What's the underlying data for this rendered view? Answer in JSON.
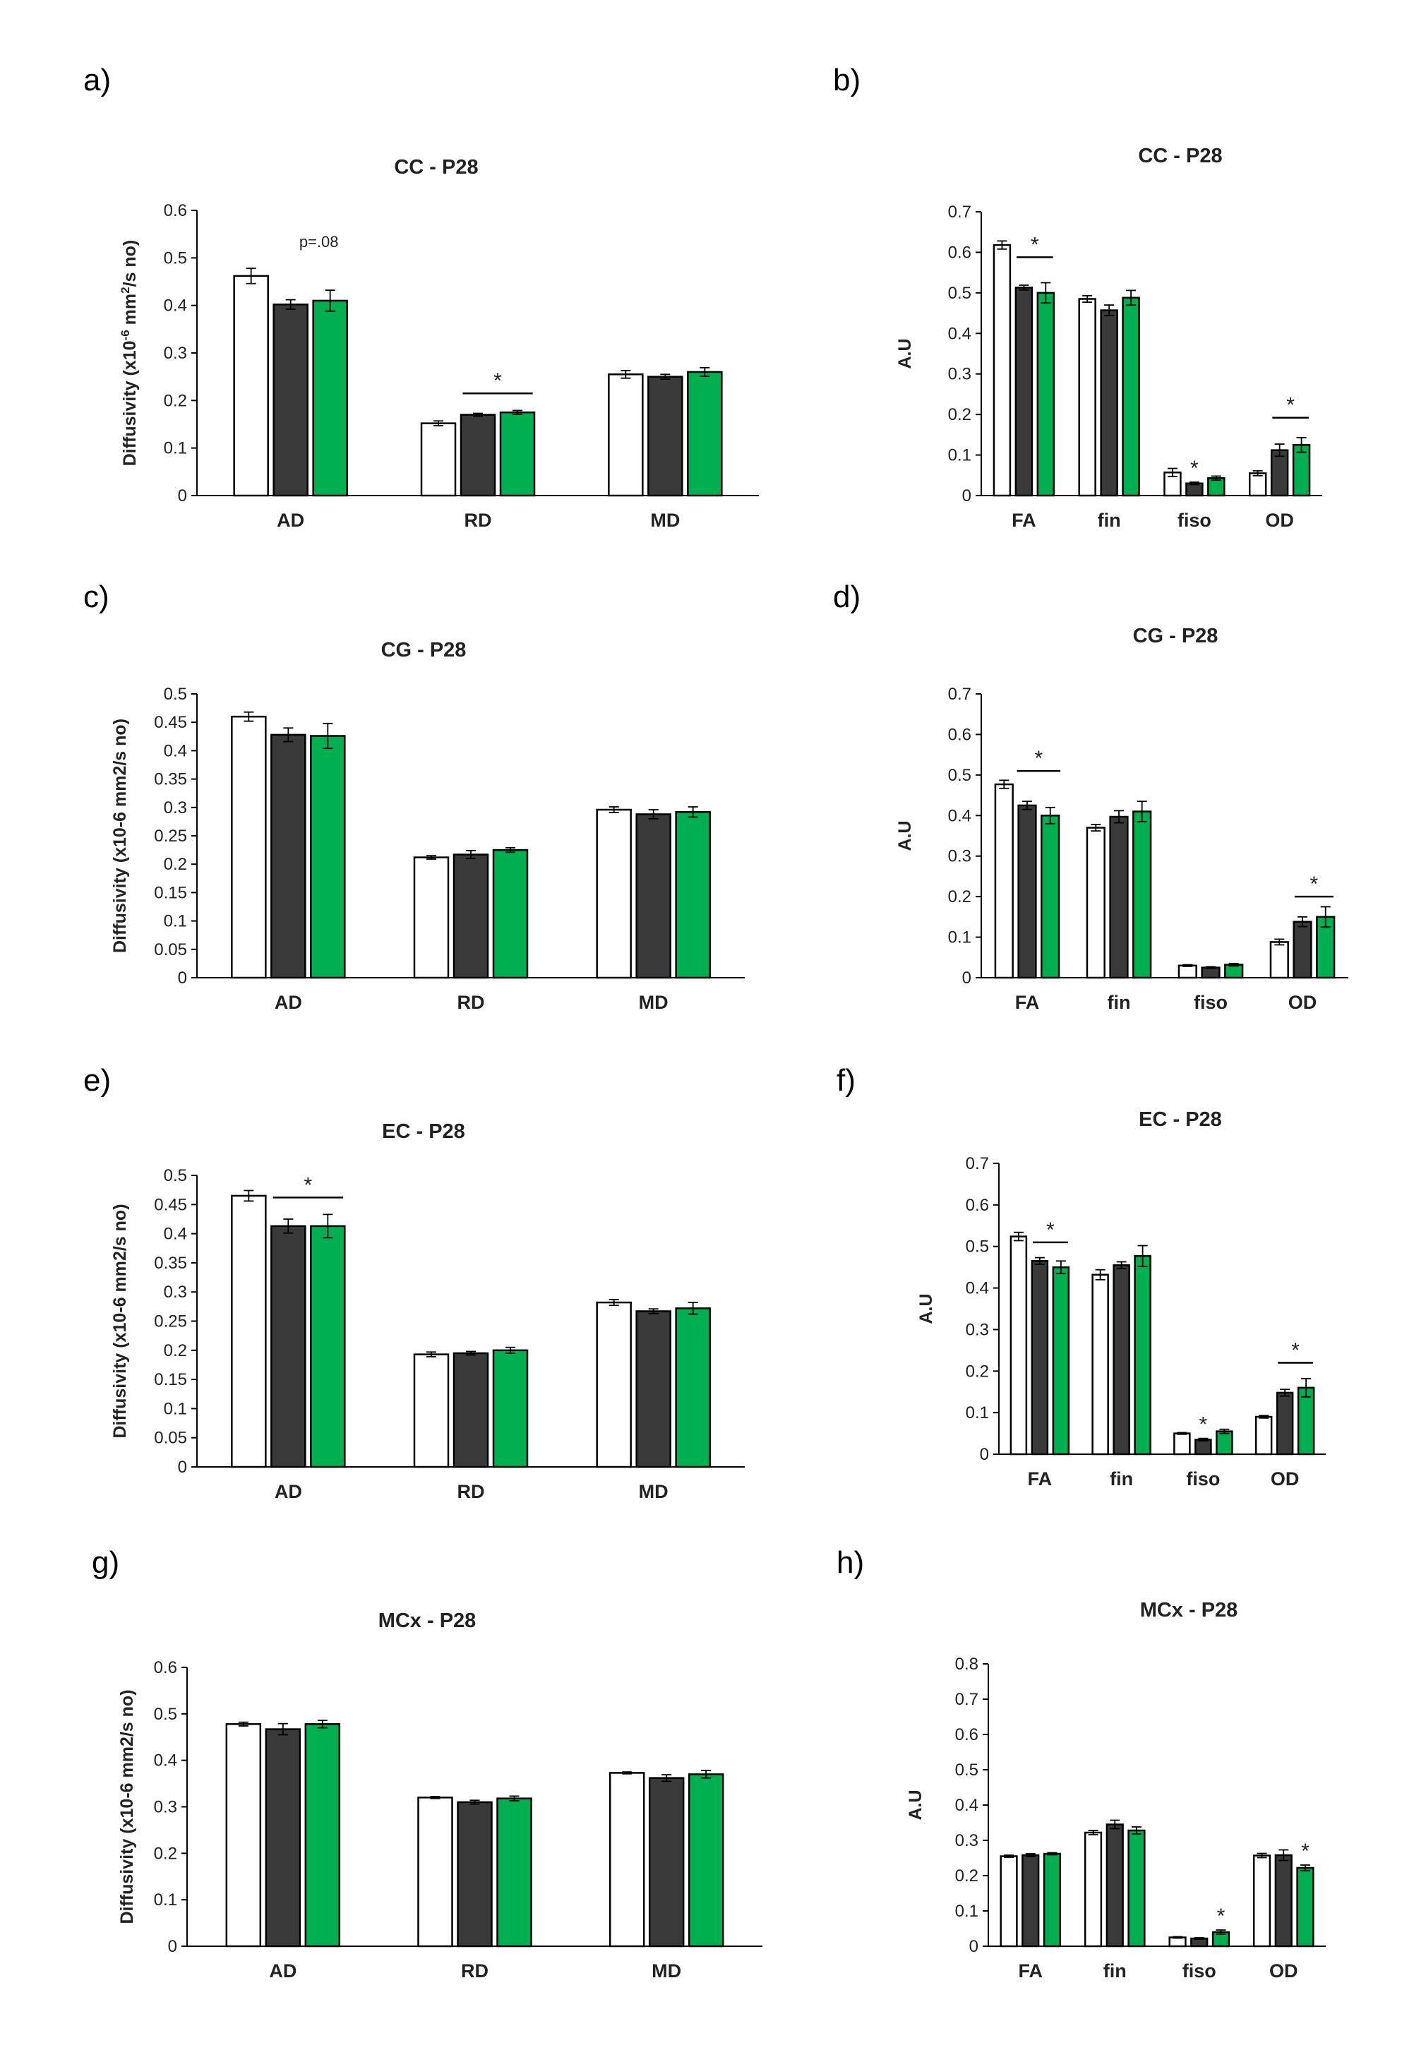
{
  "colors": {
    "control": "#ffffff",
    "group2": "#3a3a3a",
    "group3": "#00b050",
    "stroke": "#000000"
  },
  "chart_data": [
    {
      "panel": "a)",
      "type": "bar",
      "title": "CC - P28",
      "ylabel": "Diffusivity (x10-6 mm2/s no)",
      "ylim": [
        0,
        0.6
      ],
      "ticks": [
        "0",
        "0.1",
        "0.2",
        "0.3",
        "0.4",
        "0.5",
        "0.6"
      ],
      "categories": [
        "AD",
        "RD",
        "MD"
      ],
      "series": [
        {
          "name": "group1",
          "values": [
            0.462,
            0.152,
            0.255
          ],
          "err": [
            0.016,
            0.005,
            0.008
          ]
        },
        {
          "name": "group2",
          "values": [
            0.402,
            0.17,
            0.25
          ],
          "err": [
            0.01,
            0.003,
            0.005
          ]
        },
        {
          "name": "group3",
          "values": [
            0.41,
            0.175,
            0.26
          ],
          "err": [
            0.022,
            0.004,
            0.009
          ]
        }
      ],
      "annotations": [
        {
          "text": "p=.08",
          "cat": 0
        },
        {
          "text": "*",
          "cat": 1,
          "from": 1,
          "to": 2,
          "y": 0.215
        }
      ]
    },
    {
      "panel": "b)",
      "type": "bar",
      "title": "CC - P28",
      "ylabel": "A.U",
      "ylim": [
        0,
        0.7
      ],
      "ticks": [
        "0",
        "0.1",
        "0.2",
        "0.3",
        "0.4",
        "0.5",
        "0.6",
        "0.7"
      ],
      "categories": [
        "FA",
        "fin",
        "fiso",
        "OD"
      ],
      "series": [
        {
          "name": "group1",
          "values": [
            0.618,
            0.485,
            0.057,
            0.055
          ],
          "err": [
            0.01,
            0.008,
            0.01,
            0.006
          ]
        },
        {
          "name": "group2",
          "values": [
            0.513,
            0.457,
            0.03,
            0.112
          ],
          "err": [
            0.006,
            0.013,
            0.003,
            0.015
          ]
        },
        {
          "name": "group3",
          "values": [
            0.5,
            0.488,
            0.043,
            0.125
          ],
          "err": [
            0.025,
            0.018,
            0.005,
            0.018
          ]
        }
      ],
      "annotations": [
        {
          "text": "*",
          "cat": 0,
          "from": 1,
          "to": 2,
          "y": 0.588
        },
        {
          "text": "*",
          "cat": 2,
          "bar": 1
        },
        {
          "text": "*",
          "cat": 3,
          "from": 1,
          "to": 2,
          "y": 0.192
        }
      ]
    },
    {
      "panel": "c)",
      "type": "bar",
      "title": "CG - P28",
      "ylabel": "Diffusivity (x10-6 mm2/s no)",
      "ylim": [
        0,
        0.5
      ],
      "ticks": [
        "0",
        "0.05",
        "0.1",
        "0.15",
        "0.2",
        "0.25",
        "0.3",
        "0.35",
        "0.4",
        "0.45",
        "0.5"
      ],
      "categories": [
        "AD",
        "RD",
        "MD"
      ],
      "series": [
        {
          "name": "group1",
          "values": [
            0.46,
            0.212,
            0.296
          ],
          "err": [
            0.008,
            0.003,
            0.005
          ]
        },
        {
          "name": "group2",
          "values": [
            0.428,
            0.217,
            0.288
          ],
          "err": [
            0.012,
            0.007,
            0.008
          ]
        },
        {
          "name": "group3",
          "values": [
            0.426,
            0.225,
            0.292
          ],
          "err": [
            0.022,
            0.004,
            0.009
          ]
        }
      ],
      "annotations": []
    },
    {
      "panel": "d)",
      "type": "bar",
      "title": "CG - P28",
      "ylabel": "A.U",
      "ylim": [
        0,
        0.7
      ],
      "ticks": [
        "0",
        "0.1",
        "0.2",
        "0.3",
        "0.4",
        "0.5",
        "0.6",
        "0.7"
      ],
      "categories": [
        "FA",
        "fin",
        "fiso",
        "OD"
      ],
      "series": [
        {
          "name": "group1",
          "values": [
            0.477,
            0.37,
            0.03,
            0.088
          ],
          "err": [
            0.01,
            0.008,
            0.002,
            0.007
          ]
        },
        {
          "name": "group2",
          "values": [
            0.425,
            0.397,
            0.025,
            0.138
          ],
          "err": [
            0.01,
            0.015,
            0.002,
            0.012
          ]
        },
        {
          "name": "group3",
          "values": [
            0.4,
            0.41,
            0.032,
            0.15
          ],
          "err": [
            0.02,
            0.025,
            0.003,
            0.025
          ]
        }
      ],
      "annotations": [
        {
          "text": "*",
          "cat": 0,
          "from": 0.9,
          "to": 2.1,
          "y": 0.51
        },
        {
          "text": "*",
          "cat": 3,
          "from": 1,
          "to": 2,
          "y": 0.2
        }
      ]
    },
    {
      "panel": "e)",
      "type": "bar",
      "title": "EC - P28",
      "ylabel": "Diffusivity (x10-6 mm2/s no)",
      "ylim": [
        0,
        0.5
      ],
      "ticks": [
        "0",
        "0.05",
        "0.1",
        "0.15",
        "0.2",
        "0.25",
        "0.3",
        "0.35",
        "0.4",
        "0.45",
        "0.5"
      ],
      "categories": [
        "AD",
        "RD",
        "MD"
      ],
      "series": [
        {
          "name": "group1",
          "values": [
            0.465,
            0.193,
            0.282
          ],
          "err": [
            0.009,
            0.004,
            0.005
          ]
        },
        {
          "name": "group2",
          "values": [
            0.413,
            0.195,
            0.267
          ],
          "err": [
            0.012,
            0.003,
            0.004
          ]
        },
        {
          "name": "group3",
          "values": [
            0.413,
            0.2,
            0.272
          ],
          "err": [
            0.02,
            0.005,
            0.01
          ]
        }
      ],
      "annotations": [
        {
          "text": "*",
          "cat": 0,
          "from": 1,
          "to": 2,
          "y": 0.462
        }
      ]
    },
    {
      "panel": "f)",
      "type": "bar",
      "title": "EC - P28",
      "ylabel": "A.U",
      "ylim": [
        0,
        0.7
      ],
      "ticks": [
        "0",
        "0.1",
        "0.2",
        "0.3",
        "0.4",
        "0.5",
        "0.6",
        "0.7"
      ],
      "categories": [
        "FA",
        "fin",
        "fiso",
        "OD"
      ],
      "series": [
        {
          "name": "group1",
          "values": [
            0.524,
            0.432,
            0.05,
            0.09
          ],
          "err": [
            0.01,
            0.012,
            0.002,
            0.003
          ]
        },
        {
          "name": "group2",
          "values": [
            0.465,
            0.455,
            0.035,
            0.148
          ],
          "err": [
            0.008,
            0.008,
            0.003,
            0.008
          ]
        },
        {
          "name": "group3",
          "values": [
            0.45,
            0.477,
            0.055,
            0.16
          ],
          "err": [
            0.015,
            0.025,
            0.005,
            0.022
          ]
        }
      ],
      "annotations": [
        {
          "text": "*",
          "cat": 0,
          "from": 1,
          "to": 2,
          "y": 0.51
        },
        {
          "text": "*",
          "cat": 2,
          "bar": 1
        },
        {
          "text": "*",
          "cat": 3,
          "from": 1,
          "to": 2,
          "y": 0.22
        }
      ]
    },
    {
      "panel": "g)",
      "type": "bar",
      "title": "MCx - P28",
      "ylabel": "Diffusivity (x10-6 mm2/s no)",
      "ylim": [
        0,
        0.6
      ],
      "ticks": [
        "0",
        "0.1",
        "0.2",
        "0.3",
        "0.4",
        "0.5",
        "0.6"
      ],
      "categories": [
        "AD",
        "RD",
        "MD"
      ],
      "series": [
        {
          "name": "group1",
          "values": [
            0.478,
            0.32,
            0.373
          ],
          "err": [
            0.004,
            0.002,
            0.002
          ]
        },
        {
          "name": "group2",
          "values": [
            0.467,
            0.31,
            0.362
          ],
          "err": [
            0.012,
            0.004,
            0.007
          ]
        },
        {
          "name": "group3",
          "values": [
            0.478,
            0.318,
            0.37
          ],
          "err": [
            0.008,
            0.005,
            0.008
          ]
        }
      ],
      "annotations": []
    },
    {
      "panel": "h)",
      "type": "bar",
      "title": "MCx - P28",
      "ylabel": "A.U",
      "ylim": [
        0,
        0.8
      ],
      "ticks": [
        "0",
        "0.1",
        "0.2",
        "0.3",
        "0.4",
        "0.5",
        "0.6",
        "0.7",
        "0.8"
      ],
      "categories": [
        "FA",
        "fin",
        "fiso",
        "OD"
      ],
      "series": [
        {
          "name": "group1",
          "values": [
            0.255,
            0.322,
            0.025,
            0.257
          ],
          "err": [
            0.003,
            0.006,
            0.002,
            0.006
          ]
        },
        {
          "name": "group2",
          "values": [
            0.258,
            0.345,
            0.022,
            0.258
          ],
          "err": [
            0.004,
            0.012,
            0.002,
            0.015
          ]
        },
        {
          "name": "group3",
          "values": [
            0.262,
            0.328,
            0.04,
            0.222
          ],
          "err": [
            0.003,
            0.01,
            0.006,
            0.008
          ]
        }
      ],
      "annotations": [
        {
          "text": "*",
          "cat": 2,
          "bar": 2
        },
        {
          "text": "*",
          "cat": 3,
          "bar": 2
        }
      ]
    }
  ]
}
